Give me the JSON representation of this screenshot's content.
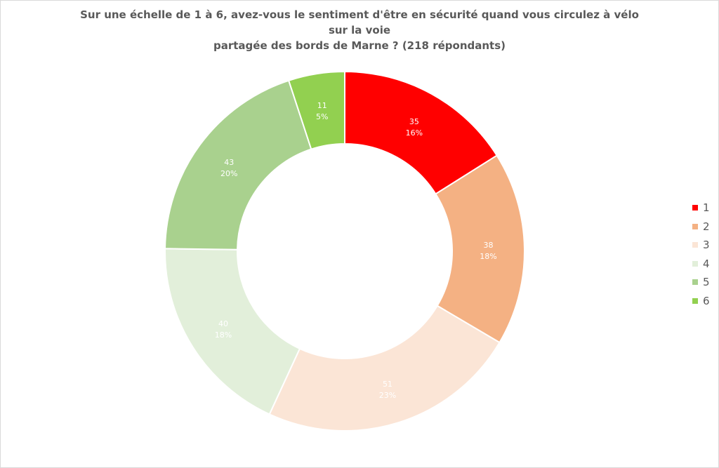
{
  "chart_data": {
    "type": "pie",
    "title": "Sur une échelle de 1 à 6, avez-vous le sentiment d'être en sécurité quand vous circulez à vélo sur la voie partagée des bords de Marne ? (218 répondants)",
    "title_lines": [
      "Sur une échelle de 1 à 6, avez-vous le sentiment d'être en sécurité quand vous circulez à vélo sur la voie",
      "partagée des bords de Marne ? (218 répondants)"
    ],
    "donut": true,
    "legend_position": "right",
    "categories": [
      "1",
      "2",
      "3",
      "4",
      "5",
      "6"
    ],
    "values": [
      35,
      38,
      51,
      40,
      43,
      11
    ],
    "percent_labels": [
      "16%",
      "18%",
      "23%",
      "18%",
      "20%",
      "5%"
    ],
    "colors": [
      "#ff0000",
      "#f4b183",
      "#fbe5d6",
      "#e2efda",
      "#a9d18e",
      "#92d050"
    ],
    "label_colors": [
      "#ffffff",
      "#ffffff",
      "#ffffff",
      "#ffffff",
      "#ffffff",
      "#ffffff"
    ]
  }
}
